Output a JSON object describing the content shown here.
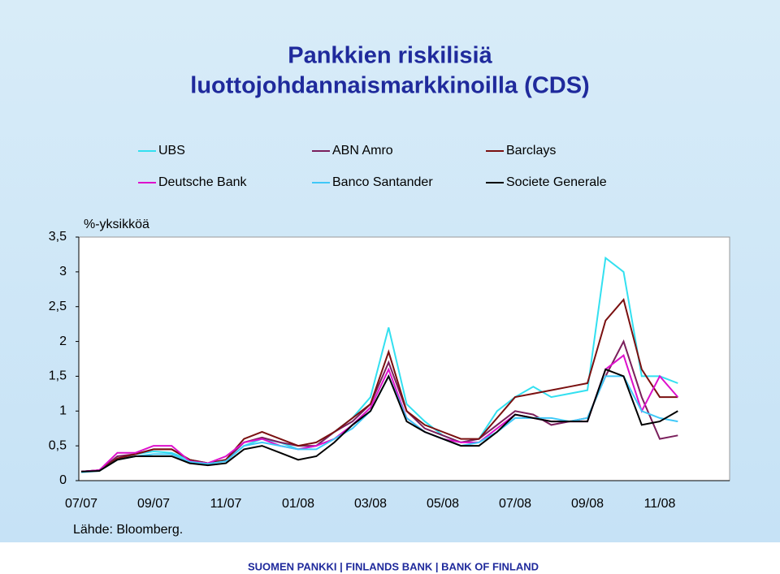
{
  "chart_data": {
    "type": "line",
    "title": "Pankkien riskilisiä",
    "subtitle": "luottojohdannaismarkkinoilla (CDS)",
    "y_label": "%-yksikköä",
    "source": "Lähde: Bloomberg.",
    "footer": "SUOMEN PANKKI | FINLANDS BANK | BANK OF FINLAND",
    "categories": [
      "07/07",
      null,
      null,
      null,
      "09/07",
      null,
      null,
      null,
      "11/07",
      null,
      null,
      null,
      "01/08",
      null,
      null,
      null,
      "03/08",
      null,
      null,
      null,
      "05/08",
      null,
      null,
      null,
      "07/08",
      null,
      null,
      null,
      "09/08",
      null,
      null,
      null,
      "11/08",
      null,
      null,
      null
    ],
    "ylim": [
      0,
      3.5
    ],
    "yticks": [
      0,
      {
        "value": 0.5,
        "label": "0,5"
      },
      1,
      {
        "value": 1.5,
        "label": "1,5"
      },
      2,
      {
        "value": 2.5,
        "label": "2,5"
      },
      3,
      {
        "value": 3.5,
        "label": "3,5"
      }
    ],
    "grid": false,
    "series": [
      {
        "name": "UBS",
        "color": "#33e0f0",
        "values": [
          0.13,
          0.15,
          0.3,
          0.38,
          0.42,
          0.4,
          0.3,
          0.25,
          0.28,
          0.5,
          0.6,
          0.55,
          0.45,
          0.5,
          0.7,
          0.9,
          1.2,
          2.2,
          1.1,
          0.85,
          0.65,
          0.55,
          0.6,
          1.0,
          1.2,
          1.35,
          1.2,
          1.25,
          1.3,
          3.2,
          3.0,
          1.5,
          1.5,
          1.4,
          null,
          null
        ]
      },
      {
        "name": "ABN Amro",
        "color": "#7a1f5c",
        "values": [
          0.13,
          0.15,
          0.35,
          0.38,
          0.45,
          0.45,
          0.3,
          0.25,
          0.3,
          0.55,
          0.62,
          0.55,
          0.5,
          0.5,
          0.7,
          0.85,
          1.1,
          1.7,
          1.0,
          0.75,
          0.65,
          0.55,
          0.6,
          0.8,
          1.0,
          0.95,
          0.8,
          0.85,
          0.9,
          1.5,
          2.0,
          1.2,
          0.6,
          0.65,
          null,
          null
        ]
      },
      {
        "name": "Barclays",
        "color": "#7a1010",
        "values": [
          0.13,
          0.15,
          0.32,
          0.38,
          0.45,
          0.45,
          0.3,
          0.25,
          0.3,
          0.6,
          0.7,
          0.6,
          0.5,
          0.55,
          0.7,
          0.9,
          1.1,
          1.85,
          1.0,
          0.8,
          0.7,
          0.6,
          0.6,
          0.9,
          1.2,
          1.25,
          1.3,
          1.35,
          1.4,
          2.3,
          2.6,
          1.6,
          1.2,
          1.2,
          null,
          null
        ]
      },
      {
        "name": "Deutsche Bank",
        "color": "#dd10cc",
        "values": [
          0.13,
          0.15,
          0.4,
          0.4,
          0.5,
          0.5,
          0.28,
          0.25,
          0.35,
          0.55,
          0.6,
          0.5,
          0.45,
          0.5,
          0.6,
          0.8,
          1.05,
          1.6,
          0.9,
          0.7,
          0.6,
          0.55,
          0.55,
          0.75,
          0.95,
          0.9,
          0.85,
          0.85,
          0.85,
          1.6,
          1.8,
          1.0,
          1.5,
          1.2,
          null,
          null
        ]
      },
      {
        "name": "Banco Santander",
        "color": "#40c8f8",
        "values": [
          0.12,
          0.14,
          0.3,
          0.35,
          0.38,
          0.38,
          0.27,
          0.24,
          0.28,
          0.5,
          0.55,
          0.5,
          0.45,
          0.45,
          0.6,
          0.75,
          1.0,
          1.5,
          0.9,
          0.7,
          0.6,
          0.5,
          0.55,
          0.7,
          0.9,
          0.9,
          0.9,
          0.85,
          0.9,
          1.5,
          1.5,
          1.0,
          0.9,
          0.85,
          null,
          null
        ]
      },
      {
        "name": "Societe Generale",
        "color": "#000000",
        "values": [
          0.13,
          0.14,
          0.3,
          0.35,
          0.35,
          0.35,
          0.25,
          0.22,
          0.25,
          0.45,
          0.5,
          0.4,
          0.3,
          0.35,
          0.55,
          0.8,
          1.0,
          1.5,
          0.85,
          0.7,
          0.6,
          0.5,
          0.5,
          0.7,
          0.95,
          0.9,
          0.85,
          0.85,
          0.85,
          1.6,
          1.5,
          0.8,
          0.85,
          1.0,
          null,
          null
        ]
      }
    ]
  }
}
